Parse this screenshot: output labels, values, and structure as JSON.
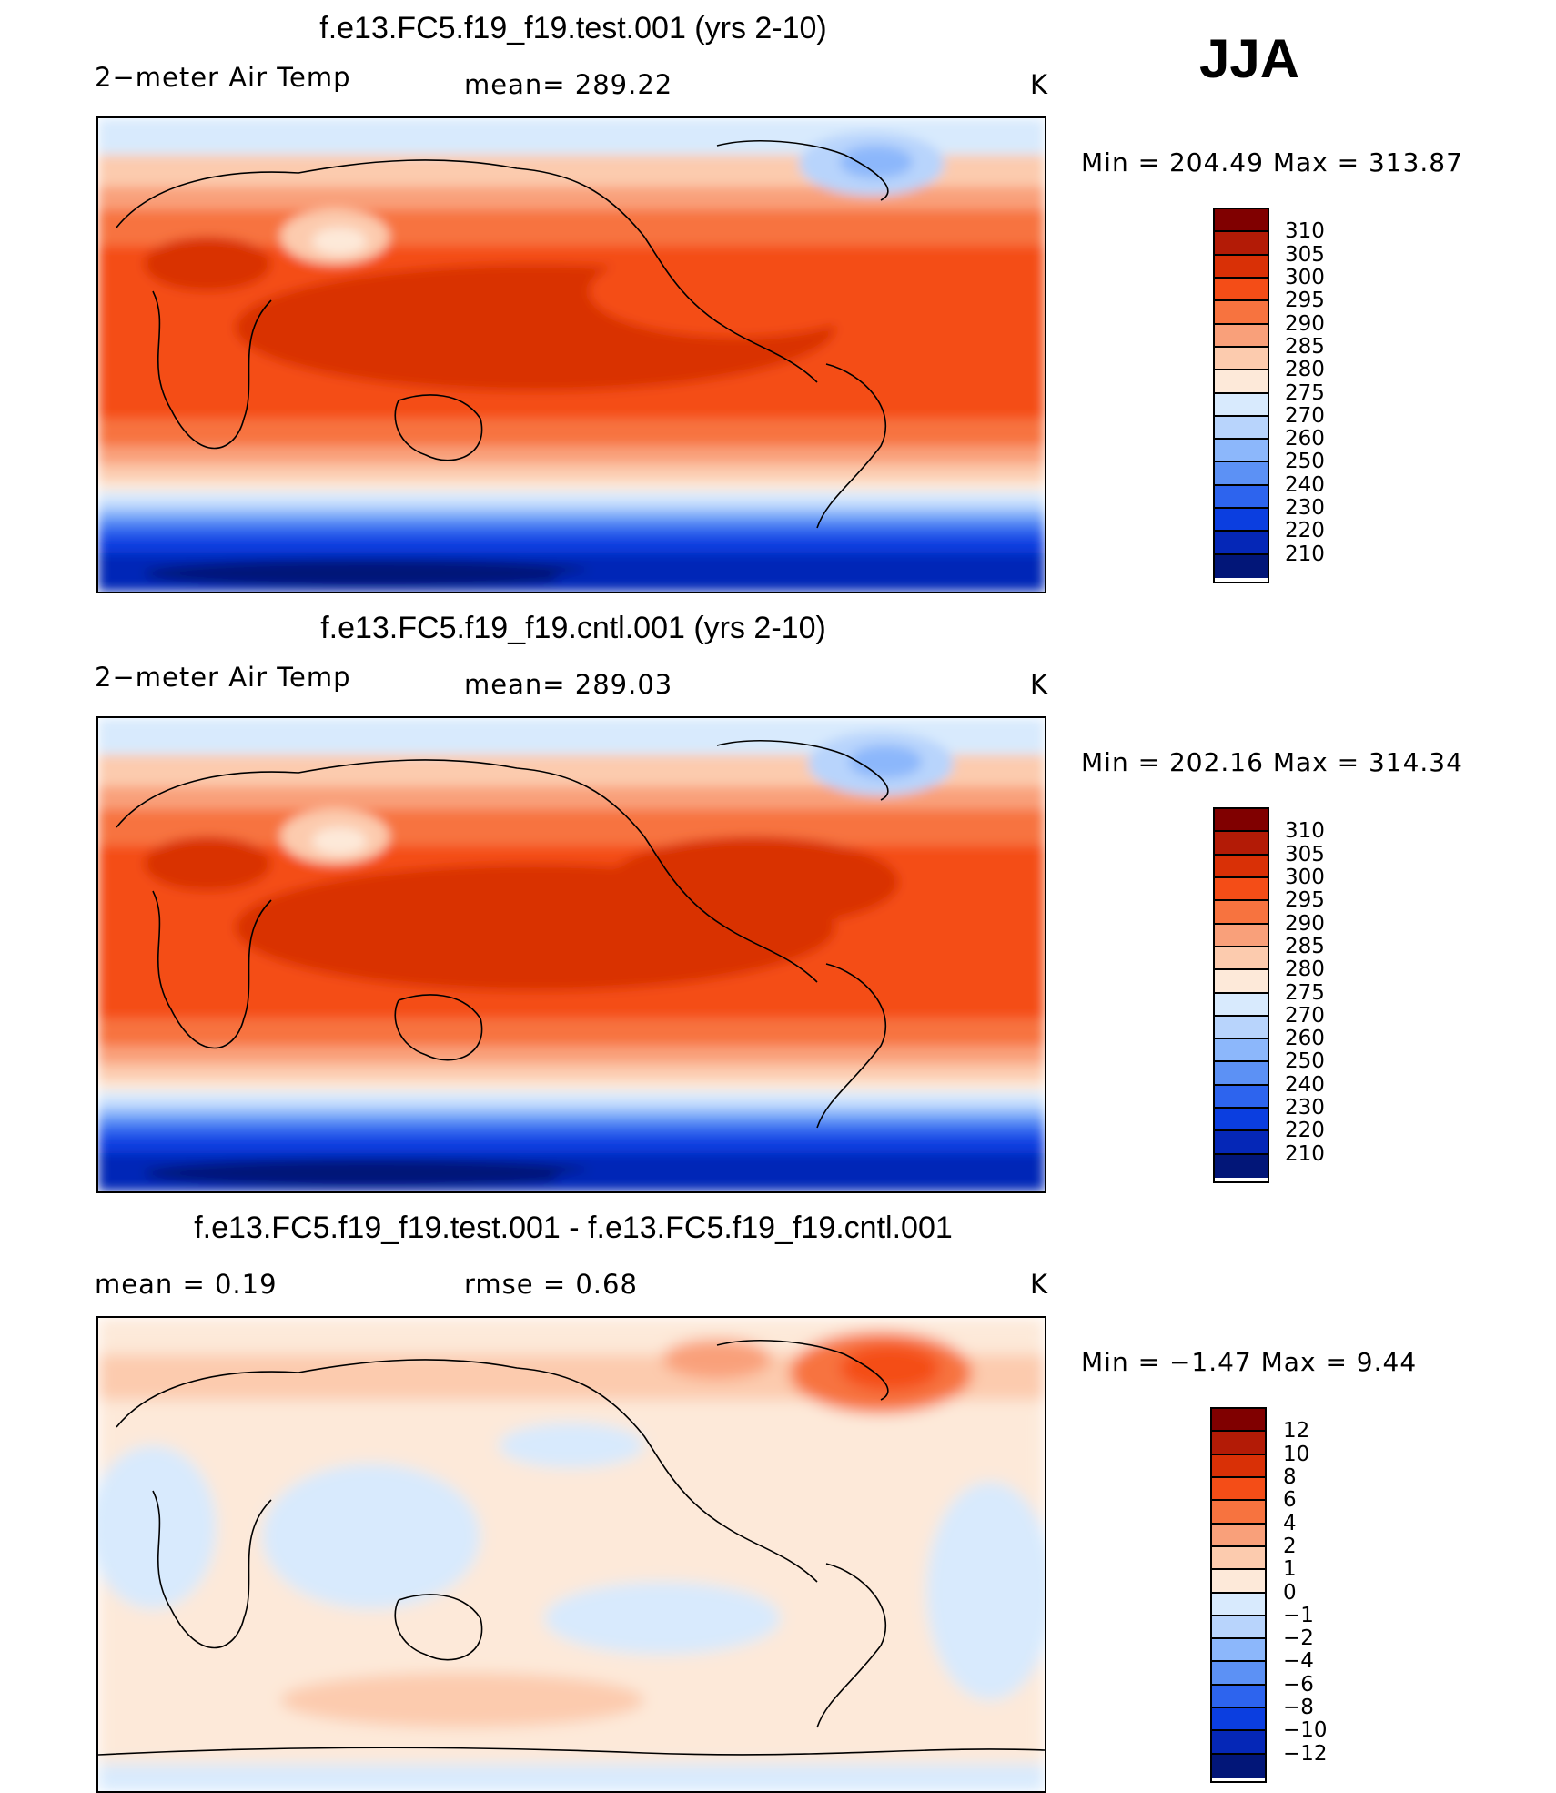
{
  "season": "JJA",
  "panels": [
    {
      "title": "f.e13.FC5.f19_f19.test.001 (yrs 2-10)",
      "left_label": "2−meter Air Temp",
      "center_label": "mean= 289.22",
      "units": "K",
      "minmax": "Min  =  204.49  Max  =  313.87"
    },
    {
      "title": "f.e13.FC5.f19_f19.cntl.001 (yrs 2-10)",
      "left_label": "2−meter Air Temp",
      "center_label": "mean= 289.03",
      "units": "K",
      "minmax": "Min  =  202.16  Max  =  314.34"
    },
    {
      "title": "f.e13.FC5.f19_f19.test.001 - f.e13.FC5.f19_f19.cntl.001",
      "left_label": "mean  =     0.19",
      "center_label": "rmse  =     0.68",
      "units": "K",
      "minmax": "Min  =    −1.47  Max  =      9.44"
    }
  ],
  "chart_data": [
    {
      "type": "heatmap",
      "title": "f.e13.FC5.f19_f19.test.001 (yrs 2-10)",
      "variable": "2-meter Air Temp",
      "units": "K",
      "mean": 289.22,
      "min": 204.49,
      "max": 313.87,
      "colorbar_levels": [
        "310",
        "305",
        "300",
        "295",
        "290",
        "285",
        "280",
        "275",
        "270",
        "260",
        "250",
        "240",
        "230",
        "220",
        "210"
      ],
      "colors": [
        "#800000",
        "#b31b06",
        "#d93006",
        "#f44d17",
        "#f7733f",
        "#f9a07a",
        "#fccbae",
        "#fde9d9",
        "#d8eafd",
        "#b8d4fc",
        "#8cb7fb",
        "#5c91f5",
        "#2d64ee",
        "#0b3ee0",
        "#0527b7",
        "#021678"
      ]
    },
    {
      "type": "heatmap",
      "title": "f.e13.FC5.f19_f19.cntl.001 (yrs 2-10)",
      "variable": "2-meter Air Temp",
      "units": "K",
      "mean": 289.03,
      "min": 202.16,
      "max": 314.34,
      "colorbar_levels": [
        "310",
        "305",
        "300",
        "295",
        "290",
        "285",
        "280",
        "275",
        "270",
        "260",
        "250",
        "240",
        "230",
        "220",
        "210"
      ],
      "colors": [
        "#800000",
        "#b31b06",
        "#d93006",
        "#f44d17",
        "#f7733f",
        "#f9a07a",
        "#fccbae",
        "#fde9d9",
        "#d8eafd",
        "#b8d4fc",
        "#8cb7fb",
        "#5c91f5",
        "#2d64ee",
        "#0b3ee0",
        "#0527b7",
        "#021678"
      ]
    },
    {
      "type": "heatmap",
      "title": "f.e13.FC5.f19_f19.test.001 - f.e13.FC5.f19_f19.cntl.001",
      "units": "K",
      "mean": 0.19,
      "rmse": 0.68,
      "min": -1.47,
      "max": 9.44,
      "colorbar_levels": [
        "12",
        "10",
        "8",
        "6",
        "4",
        "2",
        "1",
        "0",
        "−1",
        "−2",
        "−4",
        "−6",
        "−8",
        "−10",
        "−12"
      ],
      "colors": [
        "#800000",
        "#b31b06",
        "#d93006",
        "#f44d17",
        "#f7733f",
        "#f9a07a",
        "#fccbae",
        "#fde9d9",
        "#d8eafd",
        "#b8d4fc",
        "#8cb7fb",
        "#5c91f5",
        "#2d64ee",
        "#0b3ee0",
        "#0527b7",
        "#021678"
      ]
    }
  ]
}
